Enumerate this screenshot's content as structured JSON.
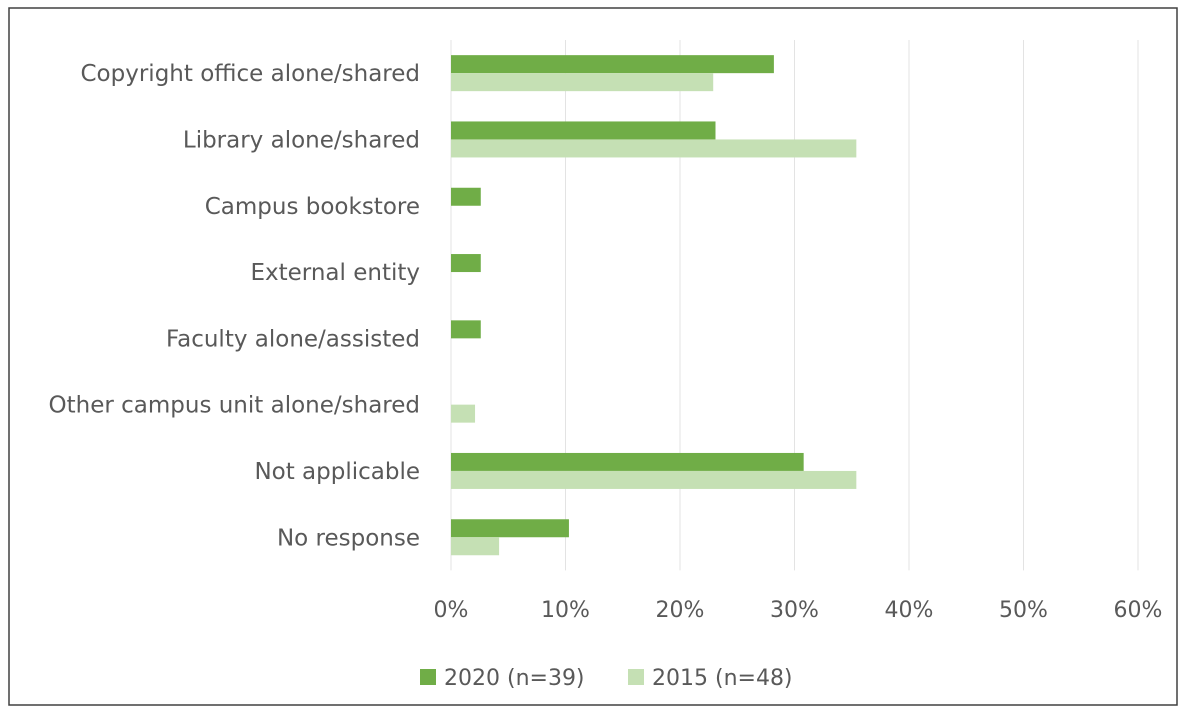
{
  "chart_data": {
    "type": "bar",
    "orientation": "horizontal",
    "categories": [
      "Copyright office alone/shared",
      "Library alone/shared",
      "Campus bookstore",
      "External entity",
      "Faculty alone/assisted",
      "Other campus unit alone/shared",
      "Not applicable",
      "No response"
    ],
    "series": [
      {
        "name": "2020 (n=39)",
        "color": "#70ad47",
        "values": [
          28.2,
          23.1,
          2.6,
          2.6,
          2.6,
          0,
          30.8,
          10.3
        ]
      },
      {
        "name": "2015 (n=48)",
        "color": "#c5e0b4",
        "values": [
          22.9,
          35.4,
          0,
          0,
          0,
          2.1,
          35.4,
          4.2
        ]
      }
    ],
    "xlim": [
      0,
      60
    ],
    "xticks": [
      "0%",
      "10%",
      "20%",
      "30%",
      "40%",
      "50%",
      "60%"
    ],
    "x_unit": "%",
    "grid": "vertical",
    "legend_position": "bottom"
  }
}
